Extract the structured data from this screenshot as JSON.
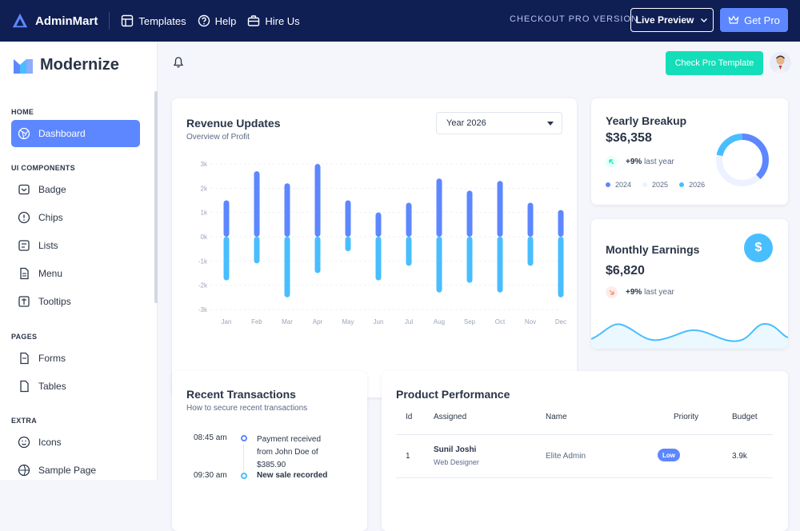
{
  "topbar": {
    "brand": "AdminMart",
    "links": [
      "Templates",
      "Help",
      "Hire Us"
    ],
    "checkout": "CHECKOUT PRO VERSION",
    "live_preview": "Live Preview",
    "get_pro": "Get Pro"
  },
  "sidebar": {
    "logo": "Modernize",
    "sections": [
      {
        "title": "HOME",
        "items": [
          {
            "label": "Dashboard",
            "icon": "aperture-icon",
            "active": true
          }
        ]
      },
      {
        "title": "UI COMPONENTS",
        "items": [
          {
            "label": "Badge",
            "icon": "badge-icon"
          },
          {
            "label": "Chips",
            "icon": "alert-circle-icon"
          },
          {
            "label": "Lists",
            "icon": "list-icon"
          },
          {
            "label": "Menu",
            "icon": "file-icon"
          },
          {
            "label": "Tooltips",
            "icon": "tooltip-icon"
          }
        ]
      },
      {
        "title": "PAGES",
        "items": [
          {
            "label": "Forms",
            "icon": "file-icon"
          },
          {
            "label": "Tables",
            "icon": "table-icon"
          }
        ]
      },
      {
        "title": "EXTRA",
        "items": [
          {
            "label": "Icons",
            "icon": "mood-icon"
          },
          {
            "label": "Sample Page",
            "icon": "aperture-icon"
          }
        ]
      }
    ]
  },
  "header": {
    "check_pro": "Check Pro Template"
  },
  "revenue": {
    "title": "Revenue Updates",
    "subtitle": "Overview of Profit",
    "select": "Year 2026"
  },
  "chart_data": {
    "type": "bar",
    "categories": [
      "Jan",
      "Feb",
      "Mar",
      "Apr",
      "May",
      "Jun",
      "Jul",
      "Aug",
      "Sep",
      "Oct",
      "Nov",
      "Dec"
    ],
    "series": [
      {
        "values": [
          1.5,
          2.7,
          2.2,
          3.0,
          1.5,
          1.0,
          1.4,
          2.4,
          1.9,
          2.3,
          1.4,
          1.1
        ]
      },
      {
        "values": [
          -1.8,
          -1.1,
          -2.5,
          -1.5,
          -0.6,
          -1.8,
          -1.2,
          -2.3,
          -1.9,
          -2.3,
          -1.2,
          -2.5
        ]
      }
    ],
    "yticks": [
      "3k",
      "2k",
      "1k",
      "0k",
      "-1k",
      "-2k",
      "-3k"
    ],
    "ylim": [
      -3,
      3
    ],
    "colors": [
      "#5d87ff",
      "#49beff"
    ],
    "grid": true
  },
  "yearly": {
    "title": "Yearly Breakup",
    "value": "$36,358",
    "change": "+9%",
    "change_label": "last year",
    "legend": [
      "2024",
      "2025",
      "2026"
    ],
    "donut": [
      38,
      40,
      22
    ]
  },
  "monthly": {
    "title": "Monthly Earnings",
    "value": "$6,820",
    "change": "+9%",
    "change_label": "last year"
  },
  "transactions": {
    "title": "Recent Transactions",
    "subtitle": "How to secure recent transactions",
    "items": [
      {
        "time": "08:45 am",
        "text": "Payment received from John Doe of $385.90",
        "lines": [
          "Payment received",
          "from John Doe of",
          "$385.90"
        ]
      },
      {
        "time": "09:30 am",
        "text": "New sale recorded"
      }
    ]
  },
  "performance": {
    "title": "Product Performance",
    "headers": [
      "Id",
      "Assigned",
      "Name",
      "Priority",
      "Budget"
    ],
    "rows": [
      {
        "id": "1",
        "name": "Sunil Joshi",
        "role": "Web Designer",
        "project": "Elite Admin",
        "priority": "Low",
        "budget": "3.9k"
      }
    ]
  }
}
